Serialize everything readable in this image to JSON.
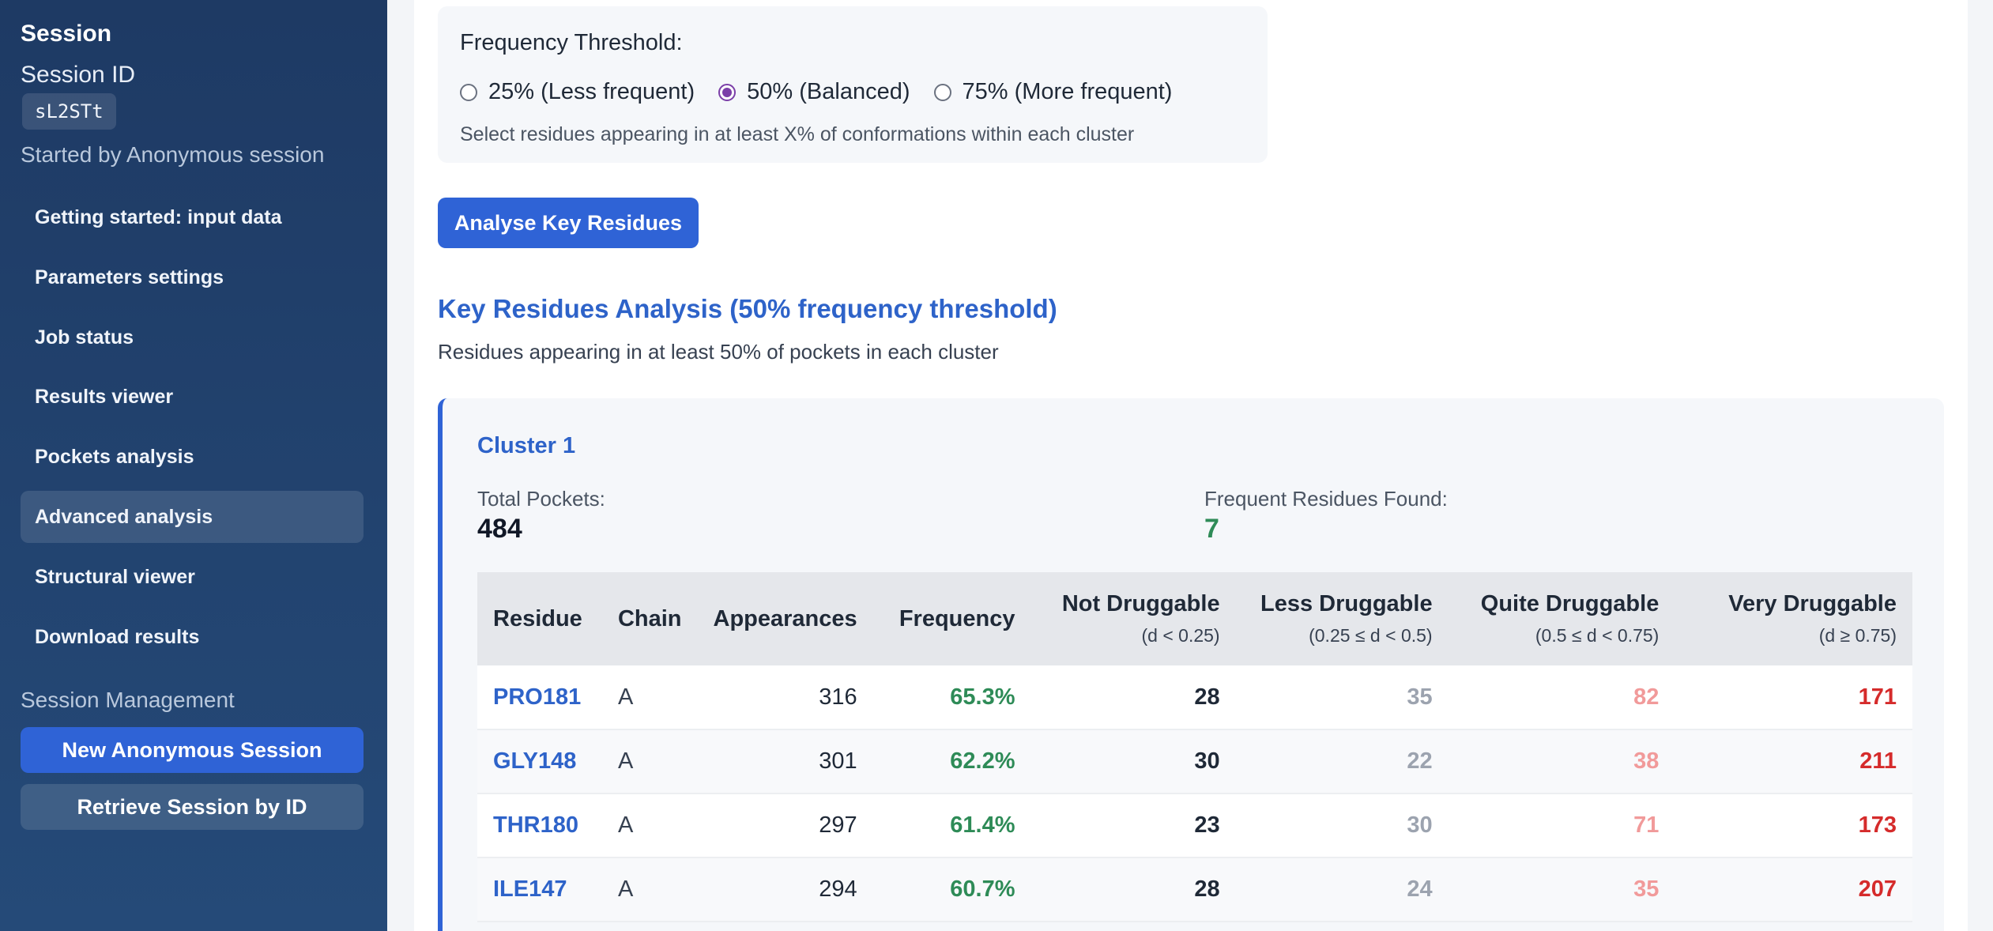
{
  "sidebar": {
    "title": "Session",
    "session_id_label": "Session ID",
    "session_id_value": "sL2STt",
    "started_by": "Started by Anonymous session",
    "nav": [
      {
        "label": "Getting started: input data"
      },
      {
        "label": "Parameters settings"
      },
      {
        "label": "Job status"
      },
      {
        "label": "Results viewer"
      },
      {
        "label": "Pockets analysis"
      },
      {
        "label": "Advanced analysis"
      },
      {
        "label": "Structural viewer"
      },
      {
        "label": "Download results"
      }
    ],
    "active_nav": "Advanced analysis",
    "management_label": "Session Management",
    "new_session_label": "New Anonymous Session",
    "retrieve_session_label": "Retrieve Session by ID"
  },
  "threshold": {
    "title": "Frequency Threshold:",
    "options": [
      {
        "label": "25% (Less frequent)",
        "checked": false
      },
      {
        "label": "50% (Balanced)",
        "checked": true
      },
      {
        "label": "75% (More frequent)",
        "checked": false
      }
    ],
    "help": "Select residues appearing in at least X% of conformations within each cluster"
  },
  "analyse_button": "Analyse Key Residues",
  "analysis": {
    "title": "Key Residues Analysis (50% frequency threshold)",
    "subtitle": "Residues appearing in at least 50% of pockets in each cluster"
  },
  "cluster": {
    "title": "Cluster 1",
    "total_label": "Total Pockets:",
    "total_value": "484",
    "found_label": "Frequent Residues Found:",
    "found_value": "7"
  },
  "table": {
    "headers": {
      "residue": "Residue",
      "chain": "Chain",
      "appearances": "Appearances",
      "frequency": "Frequency",
      "not_druggable": "Not Druggable",
      "not_druggable_sub": "(d < 0.25)",
      "less_druggable": "Less Druggable",
      "less_druggable_sub": "(0.25 ≤ d < 0.5)",
      "quite_druggable": "Quite Druggable",
      "quite_druggable_sub": "(0.5 ≤ d < 0.75)",
      "very_druggable": "Very Druggable",
      "very_druggable_sub": "(d ≥ 0.75)"
    },
    "rows": [
      {
        "residue": "PRO181",
        "chain": "A",
        "appearances": "316",
        "frequency": "65.3%",
        "nd": "28",
        "ld": "35",
        "qd": "82",
        "vd": "171"
      },
      {
        "residue": "GLY148",
        "chain": "A",
        "appearances": "301",
        "frequency": "62.2%",
        "nd": "30",
        "ld": "22",
        "qd": "38",
        "vd": "211"
      },
      {
        "residue": "THR180",
        "chain": "A",
        "appearances": "297",
        "frequency": "61.4%",
        "nd": "23",
        "ld": "30",
        "qd": "71",
        "vd": "173"
      },
      {
        "residue": "ILE147",
        "chain": "A",
        "appearances": "294",
        "frequency": "60.7%",
        "nd": "28",
        "ld": "24",
        "qd": "35",
        "vd": "207"
      }
    ]
  }
}
